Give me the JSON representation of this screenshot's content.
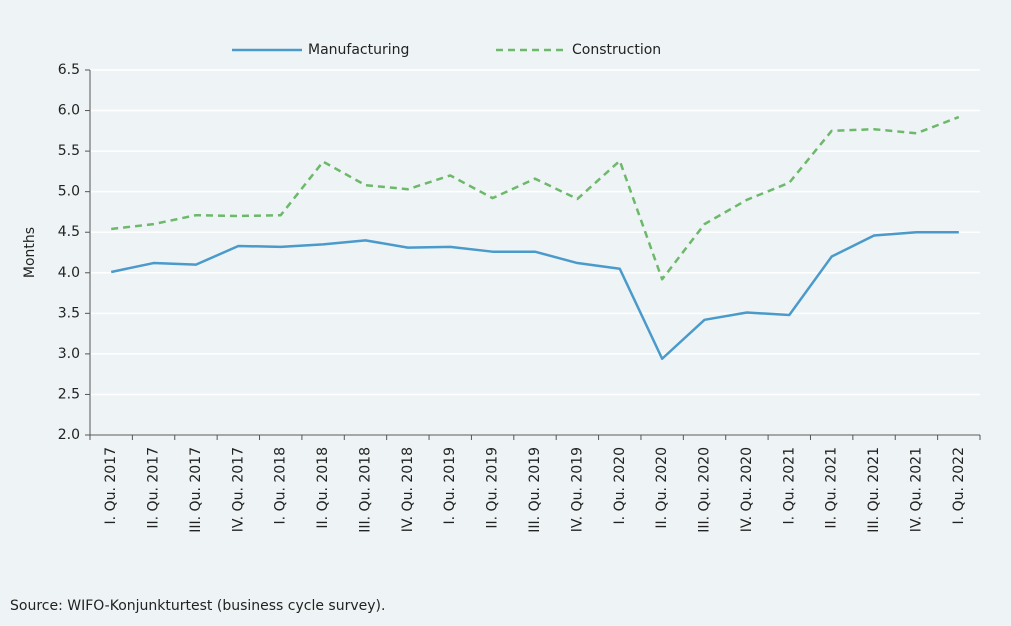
{
  "chart_data": {
    "type": "line",
    "y_label": "Months",
    "source": "Source: WIFO-Konjunkturtest (business cycle survey).",
    "categories": [
      "I. Qu. 2017",
      "II. Qu. 2017",
      "III. Qu. 2017",
      "IV. Qu. 2017",
      "I. Qu. 2018",
      "II. Qu. 2018",
      "III. Qu. 2018",
      "IV. Qu. 2018",
      "I. Qu. 2019",
      "II. Qu. 2019",
      "III. Qu. 2019",
      "IV. Qu. 2019",
      "I. Qu. 2020",
      "II. Qu. 2020",
      "III. Qu. 2020",
      "IV. Qu. 2020",
      "I. Qu. 2021",
      "II. Qu. 2021",
      "III. Qu. 2021",
      "IV. Qu. 2021",
      "I. Qu. 2022"
    ],
    "series": [
      {
        "name": "Manufacturing",
        "color": "#4a9acb",
        "style": "solid",
        "values": [
          4.01,
          4.12,
          4.1,
          4.33,
          4.32,
          4.35,
          4.4,
          4.31,
          4.32,
          4.26,
          4.26,
          4.12,
          4.05,
          2.94,
          3.42,
          3.51,
          3.48,
          4.2,
          4.46,
          4.5,
          4.5
        ]
      },
      {
        "name": "Construction",
        "color": "#6db86b",
        "style": "dashed",
        "values": [
          4.54,
          4.6,
          4.71,
          4.7,
          4.71,
          5.37,
          5.08,
          5.03,
          5.2,
          4.92,
          5.16,
          4.91,
          5.38,
          3.92,
          4.6,
          4.9,
          5.11,
          5.75,
          5.77,
          5.72,
          5.92
        ]
      }
    ],
    "ylim": [
      2,
      6.5
    ],
    "yticks": [
      {
        "value": 2,
        "label": "2.0"
      },
      2.5,
      {
        "value": 3,
        "label": "3.0"
      },
      3.5,
      {
        "value": 4,
        "label": "4.0"
      },
      4.5,
      {
        "value": 5,
        "label": "5.0"
      },
      5.5,
      {
        "value": 6,
        "label": "6.0"
      },
      6.5
    ],
    "grid": true,
    "legend": "top"
  }
}
